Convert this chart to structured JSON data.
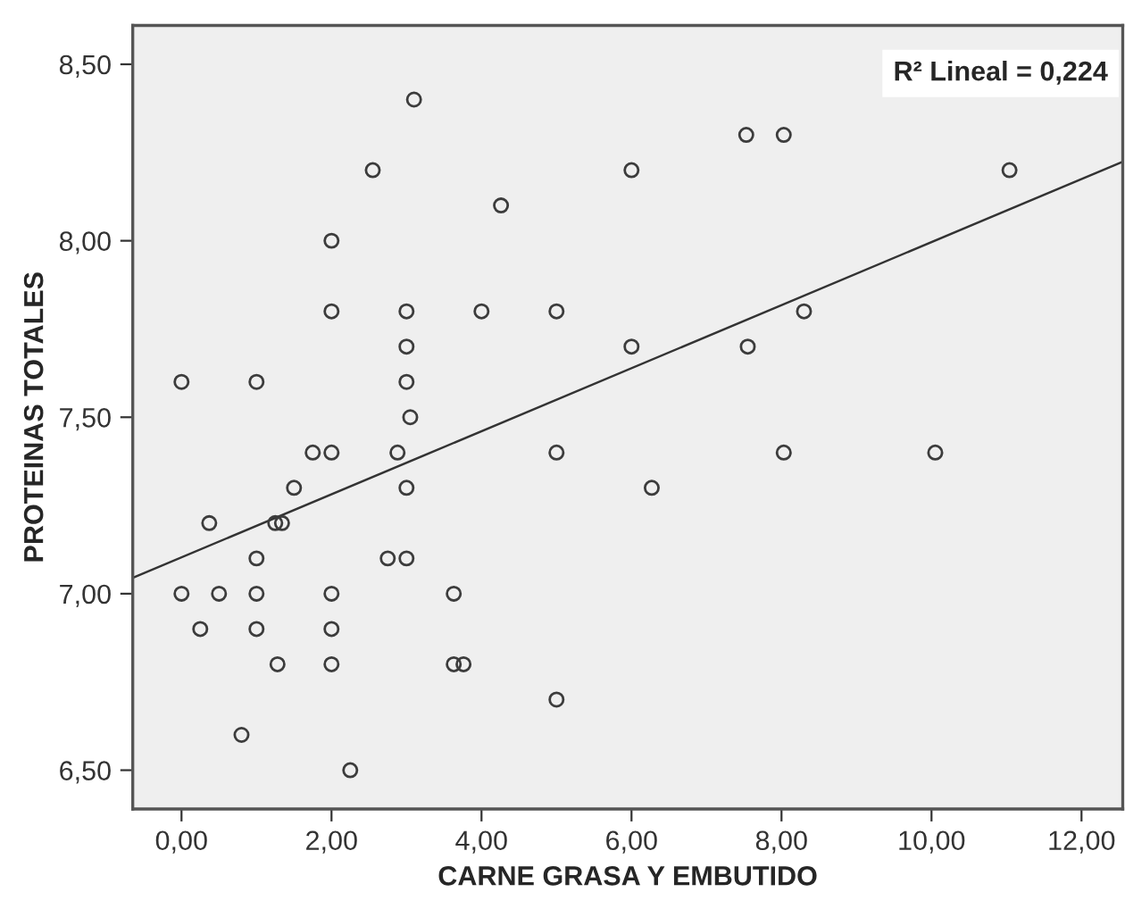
{
  "chart_data": {
    "type": "scatter",
    "xlabel": "CARNE GRASA Y EMBUTIDO",
    "ylabel": "PROTEINAS TOTALES",
    "annotations": [
      "R² Lineal = 0,224"
    ],
    "xlim": [
      -0.65,
      12.55
    ],
    "ylim": [
      6.39,
      8.61
    ],
    "xticks": [
      {
        "value": 0,
        "label": "0,00"
      },
      {
        "value": 2,
        "label": "2,00"
      },
      {
        "value": 4,
        "label": "4,00"
      },
      {
        "value": 6,
        "label": "6,00"
      },
      {
        "value": 8,
        "label": "8,00"
      },
      {
        "value": 10,
        "label": "10,00"
      },
      {
        "value": 12,
        "label": "12,00"
      }
    ],
    "yticks": [
      {
        "value": 6.5,
        "label": "6,50"
      },
      {
        "value": 7.0,
        "label": "7,00"
      },
      {
        "value": 7.5,
        "label": "7,50"
      },
      {
        "value": 8.0,
        "label": "8,00"
      },
      {
        "value": 8.5,
        "label": "8,50"
      }
    ],
    "grid": false,
    "marker": "circle",
    "series": [
      {
        "color": "#3c3c3c",
        "x": [
          0,
          0,
          0.25,
          0.37,
          0.5,
          0.8,
          1,
          1,
          1,
          1,
          1.28,
          1.25,
          1.34,
          1.5,
          1.75,
          2,
          2,
          2,
          2,
          2,
          2,
          2.25,
          2.55,
          2.75,
          2.88,
          3,
          3,
          3,
          3,
          3,
          3.05,
          3.1,
          3.63,
          3.63,
          3.76,
          4,
          4.26,
          5,
          5,
          5,
          6,
          6,
          6.27,
          7.53,
          7.55,
          8.03,
          8.03,
          8.3,
          10.05,
          11.04
        ],
        "values": [
          7.6,
          7.0,
          6.9,
          7.2,
          7.0,
          6.6,
          7.6,
          7.1,
          7.0,
          6.9,
          6.8,
          7.2,
          7.2,
          7.3,
          7.4,
          8.0,
          7.8,
          7.4,
          7.0,
          6.9,
          6.8,
          6.5,
          8.2,
          7.1,
          7.4,
          7.8,
          7.7,
          7.6,
          7.3,
          7.1,
          7.5,
          8.4,
          7.0,
          6.8,
          6.8,
          7.8,
          8.1,
          7.8,
          7.4,
          6.7,
          8.2,
          7.7,
          7.3,
          8.3,
          7.7,
          8.3,
          7.4,
          7.8,
          7.4,
          8.2
        ]
      },
      {
        "type": "line",
        "color": "#333333",
        "x": [
          -0.65,
          12.55
        ],
        "values": [
          7.045,
          8.224
        ],
        "marker": "none"
      }
    ]
  }
}
